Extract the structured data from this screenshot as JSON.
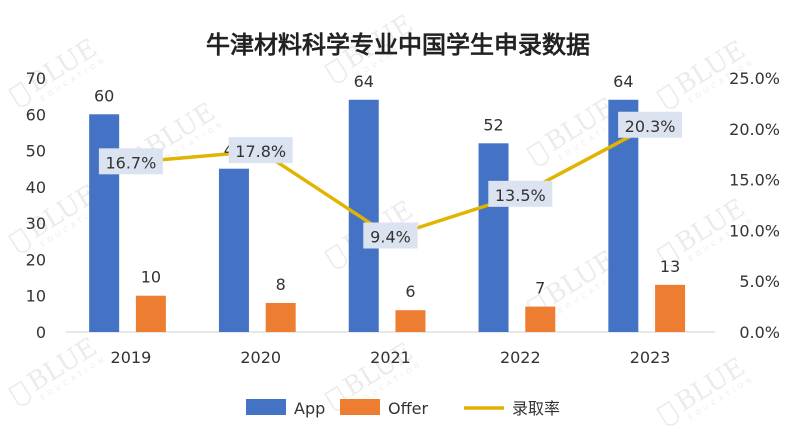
{
  "chart_data": {
    "type": "bar",
    "title": "牛津材料科学专业中国学生申录数据",
    "categories": [
      "2019",
      "2020",
      "2021",
      "2022",
      "2023"
    ],
    "series": [
      {
        "name": "App",
        "kind": "bar",
        "axis": "left",
        "color": "#4472C4",
        "values": [
          60,
          45,
          64,
          52,
          64
        ]
      },
      {
        "name": "Offer",
        "kind": "bar",
        "axis": "left",
        "color": "#ED7D31",
        "values": [
          10,
          8,
          6,
          7,
          13
        ]
      },
      {
        "name": "录取率",
        "kind": "line",
        "axis": "right",
        "color": "#E0B400",
        "values": [
          16.7,
          17.8,
          9.4,
          13.5,
          20.3
        ]
      }
    ],
    "data_labels": {
      "App": [
        "60",
        "45",
        "64",
        "52",
        "64"
      ],
      "Offer": [
        "10",
        "8",
        "6",
        "7",
        "13"
      ],
      "录取率": [
        "16.7%",
        "17.8%",
        "9.4%",
        "13.5%",
        "20.3%"
      ]
    },
    "y_left": {
      "min": 0,
      "max": 70,
      "ticks": [
        "0",
        "10",
        "20",
        "30",
        "40",
        "50",
        "60",
        "70"
      ]
    },
    "y_right": {
      "min": 0,
      "max": 25,
      "ticks": [
        "0.0%",
        "5.0%",
        "10.0%",
        "15.0%",
        "20.0%",
        "25.0%"
      ]
    },
    "grid": false,
    "legend_placement": "bottom",
    "rate_label_bg": "#DCE3F0"
  },
  "watermark": {
    "brand": "BLUE",
    "sub": "EDUCATION"
  }
}
